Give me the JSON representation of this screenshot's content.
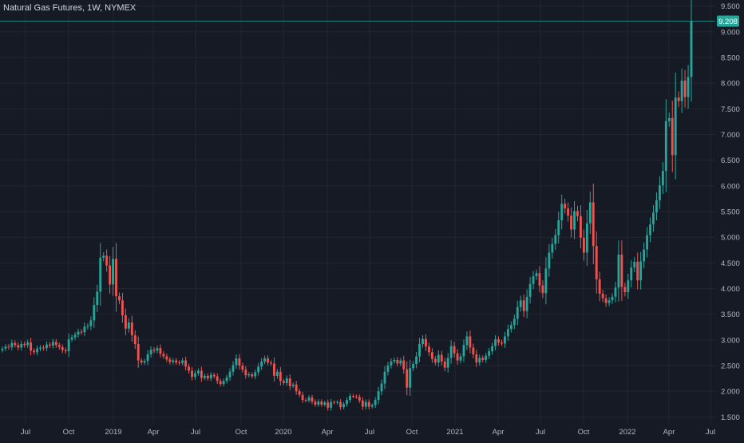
{
  "chart_data": {
    "type": "candlestick",
    "title": "Natural Gas Futures, 1W, NYMEX",
    "timeframe": "1W",
    "exchange": "NYMEX",
    "last_price": 9.208,
    "last_price_label": "9.208",
    "ylim": [
      1.35,
      9.62
    ],
    "y_ticks": [
      "9.500",
      "9.000",
      "8.500",
      "8.000",
      "7.500",
      "7.000",
      "6.500",
      "6.000",
      "5.500",
      "5.000",
      "4.500",
      "4.000",
      "3.500",
      "3.000",
      "2.500",
      "2.000",
      "1.500"
    ],
    "x_tick_labels": [
      "Jul",
      "Oct",
      "2019",
      "Apr",
      "Jul",
      "Oct",
      "2020",
      "Apr",
      "Jul",
      "Oct",
      "2021",
      "Apr",
      "Jul",
      "Oct",
      "2022",
      "Apr",
      "Jul"
    ],
    "up_color": "#26a69a",
    "down_color": "#ef5350",
    "background": "#161a25",
    "grid_color": "#232632",
    "grid": true,
    "closes": [
      2.83,
      2.87,
      2.86,
      2.94,
      2.9,
      2.85,
      2.92,
      2.9,
      2.95,
      2.79,
      2.76,
      2.83,
      2.85,
      2.84,
      2.91,
      2.89,
      2.96,
      2.9,
      2.86,
      2.8,
      2.78,
      3.01,
      3.05,
      3.1,
      3.16,
      3.15,
      3.26,
      3.27,
      3.38,
      3.68,
      3.94,
      4.6,
      4.64,
      4.45,
      4.08,
      4.58,
      3.85,
      3.77,
      3.48,
      3.22,
      3.34,
      3.09,
      2.92,
      2.6,
      2.56,
      2.59,
      2.72,
      2.81,
      2.79,
      2.84,
      2.73,
      2.68,
      2.62,
      2.57,
      2.6,
      2.56,
      2.55,
      2.6,
      2.48,
      2.4,
      2.28,
      2.35,
      2.4,
      2.26,
      2.3,
      2.25,
      2.32,
      2.29,
      2.2,
      2.14,
      2.2,
      2.27,
      2.38,
      2.51,
      2.64,
      2.5,
      2.42,
      2.31,
      2.33,
      2.29,
      2.37,
      2.48,
      2.58,
      2.64,
      2.56,
      2.54,
      2.3,
      2.38,
      2.2,
      2.16,
      2.25,
      2.1,
      2.13,
      2.0,
      1.93,
      1.83,
      1.82,
      1.88,
      1.8,
      1.74,
      1.8,
      1.74,
      1.78,
      1.68,
      1.79,
      1.78,
      1.79,
      1.69,
      1.75,
      1.83,
      1.91,
      1.9,
      1.89,
      1.82,
      1.7,
      1.79,
      1.7,
      1.73,
      1.83,
      2.0,
      2.15,
      2.38,
      2.5,
      2.58,
      2.61,
      2.54,
      2.6,
      2.43,
      2.07,
      2.45,
      2.53,
      2.68,
      2.92,
      3.02,
      2.87,
      2.76,
      2.63,
      2.56,
      2.71,
      2.58,
      2.46,
      2.65,
      2.88,
      2.74,
      2.6,
      2.68,
      2.9,
      3.07,
      2.85,
      2.72,
      2.56,
      2.65,
      2.61,
      2.69,
      2.78,
      2.88,
      3.01,
      2.95,
      2.93,
      3.07,
      3.21,
      3.29,
      3.41,
      3.64,
      3.77,
      3.56,
      3.84,
      4.09,
      4.24,
      4.3,
      4.06,
      3.91,
      4.39,
      4.7,
      4.87,
      5.04,
      5.33,
      5.65,
      5.56,
      5.42,
      5.15,
      5.51,
      5.41,
      4.99,
      4.7,
      5.27,
      5.68,
      4.83,
      4.18,
      3.9,
      3.81,
      3.72,
      3.77,
      3.84,
      4.02,
      4.66,
      4.03,
      3.93,
      4.16,
      4.41,
      4.52,
      4.16,
      4.53,
      4.76,
      5.04,
      5.25,
      5.48,
      5.72,
      6.01,
      6.29,
      7.26,
      7.32,
      6.6,
      7.72,
      7.65,
      8.05,
      7.73,
      8.12,
      9.21
    ],
    "x_labels_note": "weekly candles, Jul 2018 to May 2022"
  }
}
